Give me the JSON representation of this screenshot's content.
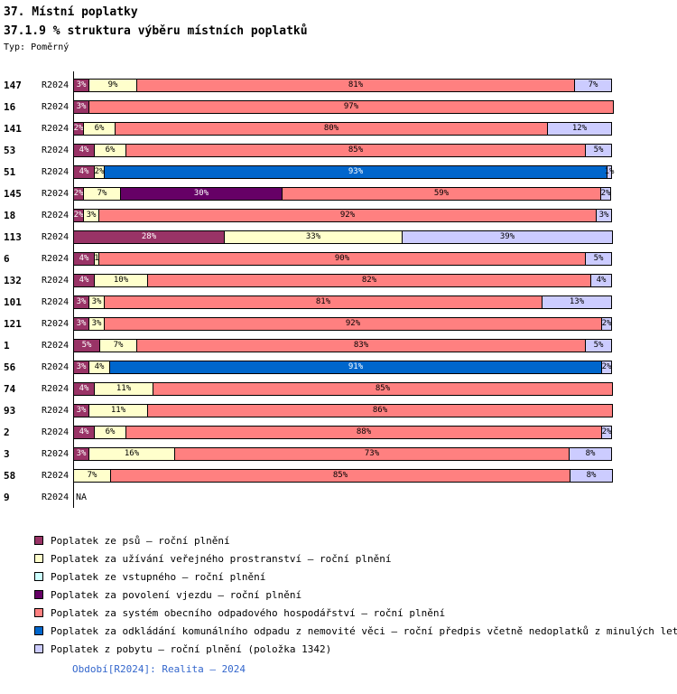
{
  "header": {
    "title": "37. Místní poplatky",
    "subtitle": "37.1.9 % struktura výběru místních poplatků",
    "type_label": "Typ: Poměrný"
  },
  "footer": {
    "period_caption": "Období[R2024]: Realita – 2024",
    "color": "#3366CC"
  },
  "chart_data": {
    "type": "bar",
    "orientation": "horizontal",
    "stacked": true,
    "value_unit": "%",
    "xlim": [
      0,
      100
    ],
    "grid": false,
    "legend_position": "bottom",
    "na_label": "NA",
    "period": "R2024",
    "series": [
      {
        "key": "psi",
        "label": "Poplatek ze psů – roční plnění",
        "color": "#993366",
        "dark": true
      },
      {
        "key": "prostranstvi",
        "label": "Poplatek za užívání veřejného prostranství – roční plnění",
        "color": "#FFFFCC",
        "dark": false
      },
      {
        "key": "vstupne",
        "label": "Poplatek ze vstupného – roční plnění",
        "color": "#CCFFFF",
        "dark": false
      },
      {
        "key": "vjezd",
        "label": "Poplatek za povolení vjezdu – roční plnění",
        "color": "#660066",
        "dark": true
      },
      {
        "key": "odpad_system",
        "label": "Poplatek za systém obecního odpadového hospodářství – roční plnění",
        "color": "#FF8080",
        "dark": false
      },
      {
        "key": "odpad_nemovitost",
        "label": "Poplatek za odkládání komunálního odpadu z nemovité věci – roční předpis včetně nedoplatků z minulých let",
        "color": "#0066CC",
        "dark": true
      },
      {
        "key": "pobyt",
        "label": "Poplatek z pobytu – roční plnění (položka 1342)",
        "color": "#CCCCFF",
        "dark": false
      }
    ],
    "rows": [
      {
        "id": "147",
        "period": "R2024",
        "segments": [
          [
            "psi",
            3,
            "3%"
          ],
          [
            "prostranstvi",
            9,
            "9%"
          ],
          [
            "odpad_system",
            81,
            "81%"
          ],
          [
            "pobyt",
            7,
            "7%"
          ]
        ]
      },
      {
        "id": "16",
        "period": "R2024",
        "segments": [
          [
            "psi",
            3,
            "3%"
          ],
          [
            "odpad_system",
            97,
            "97%"
          ]
        ]
      },
      {
        "id": "141",
        "period": "R2024",
        "segments": [
          [
            "psi",
            2,
            "2%"
          ],
          [
            "prostranstvi",
            6,
            "6%"
          ],
          [
            "odpad_system",
            80,
            "80%"
          ],
          [
            "pobyt",
            12,
            "12%"
          ]
        ]
      },
      {
        "id": "53",
        "period": "R2024",
        "segments": [
          [
            "psi",
            4,
            "4%"
          ],
          [
            "prostranstvi",
            6,
            "6%"
          ],
          [
            "odpad_system",
            85,
            "85%"
          ],
          [
            "pobyt",
            5,
            "5%"
          ]
        ]
      },
      {
        "id": "51",
        "period": "R2024",
        "segments": [
          [
            "psi",
            4,
            "4%"
          ],
          [
            "prostranstvi",
            2,
            "2%"
          ],
          [
            "odpad_nemovitost",
            93,
            "93%"
          ],
          [
            "pobyt",
            1,
            "1%"
          ]
        ]
      },
      {
        "id": "145",
        "period": "R2024",
        "segments": [
          [
            "psi",
            2,
            "2%"
          ],
          [
            "prostranstvi",
            7,
            "7%"
          ],
          [
            "vjezd",
            30,
            "30%"
          ],
          [
            "odpad_system",
            59,
            "59%"
          ],
          [
            "pobyt",
            2,
            "2%"
          ]
        ]
      },
      {
        "id": "18",
        "period": "R2024",
        "segments": [
          [
            "psi",
            2,
            "2%"
          ],
          [
            "prostranstvi",
            3,
            "3%"
          ],
          [
            "odpad_system",
            92,
            "92%"
          ],
          [
            "pobyt",
            3,
            "3%"
          ]
        ]
      },
      {
        "id": "113",
        "period": "R2024",
        "segments": [
          [
            "psi",
            28,
            "28%"
          ],
          [
            "prostranstvi",
            33,
            "33%"
          ],
          [
            "pobyt",
            39,
            "39%"
          ]
        ]
      },
      {
        "id": "6",
        "period": "R2024",
        "segments": [
          [
            "psi",
            4,
            "4%"
          ],
          [
            "prostranstvi",
            1,
            "1"
          ],
          [
            "odpad_system",
            90,
            "90%"
          ],
          [
            "pobyt",
            5,
            "5%"
          ]
        ]
      },
      {
        "id": "132",
        "period": "R2024",
        "segments": [
          [
            "psi",
            4,
            "4%"
          ],
          [
            "prostranstvi",
            10,
            "10%"
          ],
          [
            "odpad_system",
            82,
            "82%"
          ],
          [
            "pobyt",
            4,
            "4%"
          ]
        ]
      },
      {
        "id": "101",
        "period": "R2024",
        "segments": [
          [
            "psi",
            3,
            "3%"
          ],
          [
            "prostranstvi",
            3,
            "3%"
          ],
          [
            "odpad_system",
            81,
            "81%"
          ],
          [
            "pobyt",
            13,
            "13%"
          ]
        ]
      },
      {
        "id": "121",
        "period": "R2024",
        "segments": [
          [
            "psi",
            3,
            "3%"
          ],
          [
            "prostranstvi",
            3,
            "3%"
          ],
          [
            "odpad_system",
            92,
            "92%"
          ],
          [
            "pobyt",
            2,
            "2%"
          ]
        ]
      },
      {
        "id": "1",
        "period": "R2024",
        "segments": [
          [
            "psi",
            5,
            "5%"
          ],
          [
            "prostranstvi",
            7,
            "7%"
          ],
          [
            "odpad_system",
            83,
            "83%"
          ],
          [
            "pobyt",
            5,
            "5%"
          ]
        ]
      },
      {
        "id": "56",
        "period": "R2024",
        "segments": [
          [
            "psi",
            3,
            "3%"
          ],
          [
            "prostranstvi",
            4,
            "4%"
          ],
          [
            "odpad_nemovitost",
            91,
            "91%"
          ],
          [
            "pobyt",
            2,
            "2%"
          ]
        ]
      },
      {
        "id": "74",
        "period": "R2024",
        "segments": [
          [
            "psi",
            4,
            "4%"
          ],
          [
            "prostranstvi",
            11,
            "11%"
          ],
          [
            "odpad_system",
            85,
            "85%"
          ]
        ]
      },
      {
        "id": "93",
        "period": "R2024",
        "segments": [
          [
            "psi",
            3,
            "3%"
          ],
          [
            "prostranstvi",
            11,
            "11%"
          ],
          [
            "odpad_system",
            86,
            "86%"
          ]
        ]
      },
      {
        "id": "2",
        "period": "R2024",
        "segments": [
          [
            "psi",
            4,
            "4%"
          ],
          [
            "prostranstvi",
            6,
            "6%"
          ],
          [
            "odpad_system",
            88,
            "88%"
          ],
          [
            "pobyt",
            2,
            "2%"
          ]
        ]
      },
      {
        "id": "3",
        "period": "R2024",
        "segments": [
          [
            "psi",
            3,
            "3%"
          ],
          [
            "prostranstvi",
            16,
            "16%"
          ],
          [
            "odpad_system",
            73,
            "73%"
          ],
          [
            "pobyt",
            8,
            "8%"
          ]
        ]
      },
      {
        "id": "58",
        "period": "R2024",
        "segments": [
          [
            "prostranstvi",
            7,
            "7%"
          ],
          [
            "odpad_system",
            85,
            "85%"
          ],
          [
            "pobyt",
            8,
            "8%"
          ]
        ]
      },
      {
        "id": "9",
        "period": "R2024",
        "segments": [],
        "na": true
      }
    ]
  }
}
